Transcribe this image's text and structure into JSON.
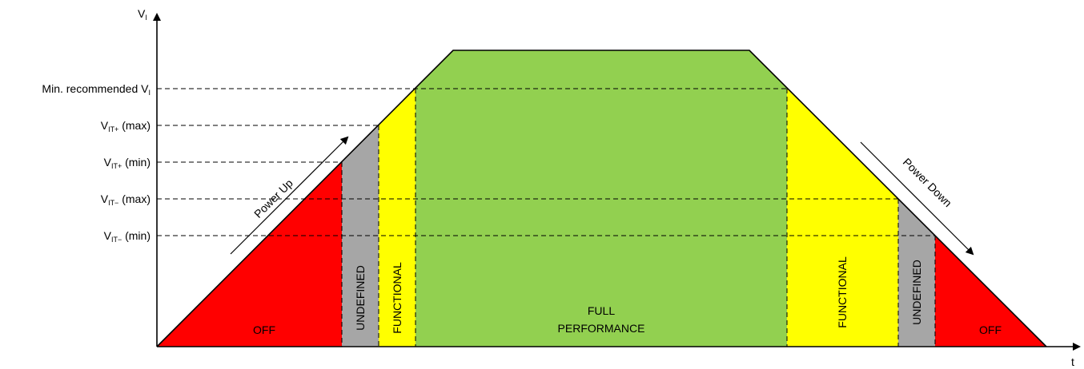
{
  "axes": {
    "y_label_main": "V",
    "y_label_sub": "I",
    "x_label": "t"
  },
  "thresholds": [
    {
      "main": "Min. recommended V",
      "sub": "I",
      "suffix": ""
    },
    {
      "main": "V",
      "sub": "IT+",
      "suffix": " (max)"
    },
    {
      "main": "V",
      "sub": "IT+",
      "suffix": " (min)"
    },
    {
      "main": "V",
      "sub": "IT−",
      "suffix": " (max)"
    },
    {
      "main": "V",
      "sub": "IT−",
      "suffix": " (min)"
    }
  ],
  "regions": {
    "off_left": "OFF",
    "undefined_left": "UNDEFINED",
    "functional_left": "FUNCTIONAL",
    "full_line1": "FULL",
    "full_line2": "PERFORMANCE",
    "functional_right": "FUNCTIONAL",
    "undefined_right": "UNDEFINED",
    "off_right": "OFF"
  },
  "annotations": {
    "power_up": "Power Up",
    "power_down": "Power Down"
  },
  "colors": {
    "off": "#ff0000",
    "undefined": "#a6a6a6",
    "functional": "#ffff00",
    "full": "#92d050"
  }
}
